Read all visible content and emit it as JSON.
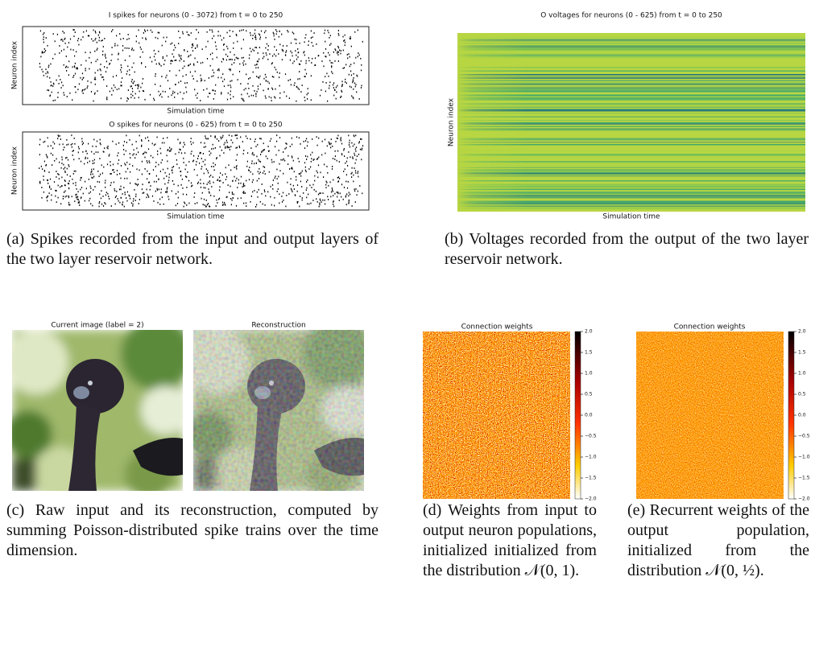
{
  "figure": {
    "a": {
      "plots": [
        {
          "title": "I spikes for neurons (0 - 3072) from t = 0 to 250",
          "xlabel": "Simulation time",
          "ylabel": "Neuron index"
        },
        {
          "title": "O spikes for neurons (0 - 625) from t = 0 to 250",
          "xlabel": "Simulation time",
          "ylabel": "Neuron index"
        }
      ],
      "caption": "(a) Spikes recorded from the input and output layers of the two layer reservoir network."
    },
    "b": {
      "title": "O voltages for neurons (0 - 625) from t = 0 to 250",
      "xlabel": "Simulation time",
      "ylabel": "Neuron index",
      "caption": "(b) Voltages recorded from the output of the two layer reservoir network."
    },
    "c": {
      "images": [
        {
          "title": "Current image (label = 2)"
        },
        {
          "title": "Reconstruction"
        }
      ],
      "caption": "(c) Raw input and its reconstruction, computed by summing Poisson-distributed spike trains over the time dimension."
    },
    "d": {
      "title": "Connection weights",
      "colorbar": {
        "lim": [
          -2,
          2
        ],
        "ticks": [
          {
            "value": 2,
            "label": "2.0"
          },
          {
            "value": 1.5,
            "label": "1.5"
          },
          {
            "value": 1,
            "label": "1.0"
          },
          {
            "value": 0.5,
            "label": "0.5"
          },
          {
            "value": 0,
            "label": "0.0"
          },
          {
            "value": -0.5,
            "label": "−0.5"
          },
          {
            "value": -1,
            "label": "−1.0"
          },
          {
            "value": -1.5,
            "label": "−1.5"
          },
          {
            "value": -2,
            "label": "−2.0"
          }
        ]
      },
      "caption": "(d) Weights from input to output neuron populations, initialized initialized from the distribution 𝒩(0, 1)."
    },
    "e": {
      "title": "Connection weights",
      "colorbar": {
        "lim": [
          -2,
          2
        ],
        "ticks": [
          {
            "value": 2,
            "label": "2.0"
          },
          {
            "value": 1.5,
            "label": "1.5"
          },
          {
            "value": 1,
            "label": "1.0"
          },
          {
            "value": 0.5,
            "label": "0.5"
          },
          {
            "value": 0,
            "label": "0.0"
          },
          {
            "value": -0.5,
            "label": "−0.5"
          },
          {
            "value": -1,
            "label": "−1.0"
          },
          {
            "value": -1.5,
            "label": "−1.5"
          },
          {
            "value": -2,
            "label": "−2.0"
          }
        ]
      },
      "caption": "(e) Recurrent weights of the output population, initialized from the distribution 𝒩(0, ½)."
    }
  }
}
